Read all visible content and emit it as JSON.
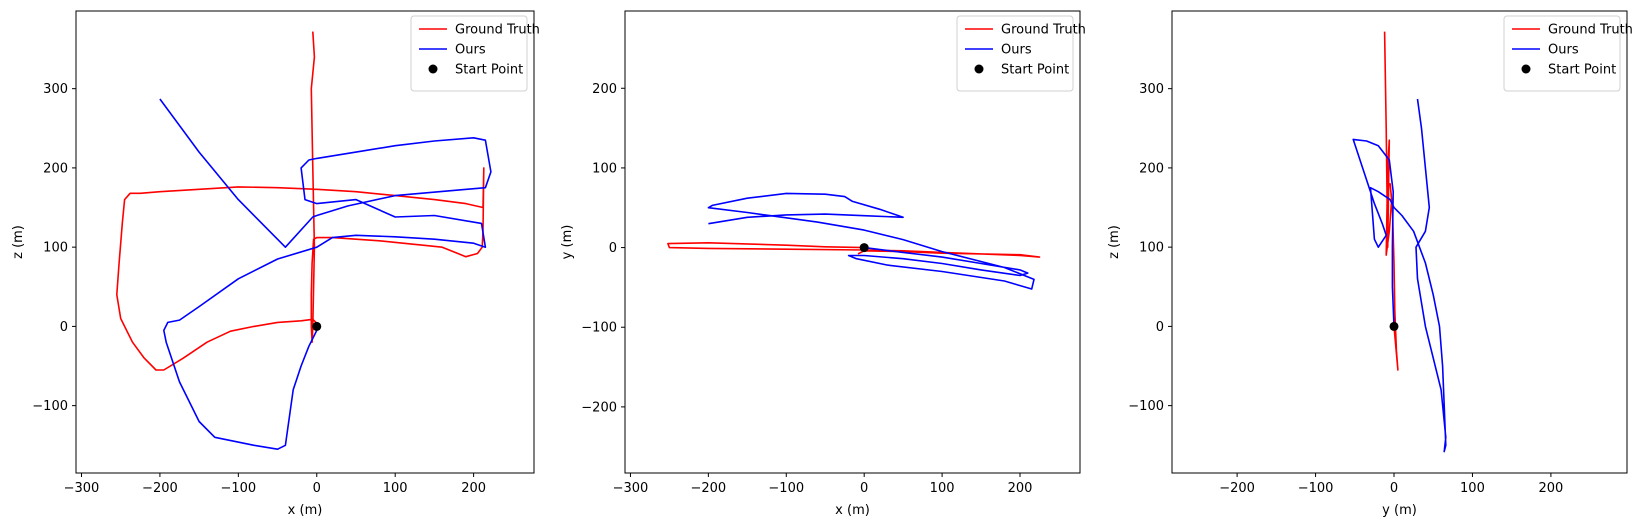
{
  "chart_data": [
    {
      "type": "line",
      "xlabel": "x (m)",
      "ylabel": "z (m)",
      "xlim": [
        -307,
        277
      ],
      "ylim": [
        -185,
        398
      ],
      "xticks": [
        -300,
        -200,
        -100,
        0,
        100,
        200
      ],
      "yticks": [
        -100,
        0,
        100,
        200,
        300
      ],
      "legend": {
        "placement": "top-right",
        "entries": [
          "Ground Truth",
          "Ours",
          "Start Point"
        ]
      },
      "series": [
        {
          "name": "Ground Truth",
          "color": "#ff0000",
          "points": [
            [
              0,
              0
            ],
            [
              -1,
              5
            ],
            [
              -5,
              9
            ],
            [
              -20,
              7
            ],
            [
              -50,
              5
            ],
            [
              -80,
              0
            ],
            [
              -110,
              -6
            ],
            [
              -140,
              -20
            ],
            [
              -170,
              -40
            ],
            [
              -195,
              -55
            ],
            [
              -205,
              -55
            ],
            [
              -220,
              -40
            ],
            [
              -235,
              -20
            ],
            [
              -250,
              10
            ],
            [
              -255,
              40
            ],
            [
              -252,
              80
            ],
            [
              -248,
              130
            ],
            [
              -245,
              160
            ],
            [
              -238,
              168
            ],
            [
              -225,
              168
            ],
            [
              -200,
              170
            ],
            [
              -150,
              173
            ],
            [
              -100,
              176
            ],
            [
              -50,
              175
            ],
            [
              0,
              173
            ],
            [
              50,
              170
            ],
            [
              100,
              165
            ],
            [
              150,
              160
            ],
            [
              190,
              155
            ],
            [
              212,
              150
            ],
            [
              213,
              200
            ],
            [
              212,
              120
            ],
            [
              211,
              100
            ],
            [
              205,
              92
            ],
            [
              190,
              88
            ],
            [
              180,
              92
            ],
            [
              160,
              100
            ],
            [
              140,
              102
            ],
            [
              110,
              105
            ],
            [
              80,
              108
            ],
            [
              50,
              110
            ],
            [
              20,
              112
            ],
            [
              0,
              112
            ],
            [
              -4,
              110
            ],
            [
              -6,
              80
            ],
            [
              -7,
              40
            ],
            [
              -7,
              0
            ],
            [
              -6,
              -20
            ],
            [
              -5,
              0
            ],
            [
              -4,
              50
            ],
            [
              -3,
              100
            ],
            [
              -5,
              200
            ],
            [
              -7,
              300
            ],
            [
              -3,
              340
            ],
            [
              -5,
              372
            ]
          ]
        },
        {
          "name": "Ours",
          "color": "#0000ff",
          "points": [
            [
              0,
              -5
            ],
            [
              -10,
              -25
            ],
            [
              -20,
              -50
            ],
            [
              -30,
              -80
            ],
            [
              -35,
              -115
            ],
            [
              -40,
              -150
            ],
            [
              -50,
              -155
            ],
            [
              -80,
              -150
            ],
            [
              -130,
              -140
            ],
            [
              -150,
              -120
            ],
            [
              -175,
              -70
            ],
            [
              -192,
              -20
            ],
            [
              -195,
              -5
            ],
            [
              -190,
              5
            ],
            [
              -175,
              8
            ],
            [
              -150,
              25
            ],
            [
              -100,
              60
            ],
            [
              -50,
              85
            ],
            [
              0,
              100
            ],
            [
              20,
              112
            ],
            [
              50,
              115
            ],
            [
              100,
              113
            ],
            [
              150,
              110
            ],
            [
              200,
              105
            ],
            [
              215,
              100
            ],
            [
              210,
              130
            ],
            [
              150,
              140
            ],
            [
              100,
              138
            ],
            [
              50,
              160
            ],
            [
              0,
              155
            ],
            [
              -15,
              160
            ],
            [
              -20,
              200
            ],
            [
              -10,
              210
            ],
            [
              0,
              212
            ],
            [
              50,
              220
            ],
            [
              100,
              228
            ],
            [
              150,
              234
            ],
            [
              200,
              238
            ],
            [
              215,
              235
            ],
            [
              222,
              195
            ],
            [
              215,
              175
            ],
            [
              180,
              172
            ],
            [
              100,
              165
            ],
            [
              40,
              152
            ],
            [
              0,
              140
            ],
            [
              -5,
              138
            ],
            [
              -40,
              100
            ],
            [
              -100,
              160
            ],
            [
              -150,
              220
            ],
            [
              -200,
              287
            ]
          ]
        }
      ],
      "points": [
        {
          "name": "Start Point",
          "x": 0,
          "y": 0,
          "color": "#000000"
        }
      ]
    },
    {
      "type": "line",
      "xlabel": "x (m)",
      "ylabel": "y (m)",
      "xlim": [
        -307,
        277
      ],
      "ylim": [
        -283,
        297
      ],
      "xticks": [
        -300,
        -200,
        -100,
        0,
        100,
        200
      ],
      "yticks": [
        -200,
        -100,
        0,
        100,
        200
      ],
      "legend": {
        "placement": "top-right",
        "entries": [
          "Ground Truth",
          "Ours",
          "Start Point"
        ]
      },
      "series": [
        {
          "name": "Ground Truth",
          "color": "#ff0000",
          "points": [
            [
              -8,
              -8
            ],
            [
              0,
              -4
            ],
            [
              50,
              -5
            ],
            [
              100,
              -7
            ],
            [
              150,
              -8
            ],
            [
              200,
              -9
            ],
            [
              225,
              -12
            ],
            [
              200,
              -10
            ],
            [
              150,
              -8
            ],
            [
              100,
              -6
            ],
            [
              50,
              -4
            ],
            [
              0,
              -3
            ],
            [
              -100,
              -2
            ],
            [
              -200,
              -1
            ],
            [
              -250,
              0
            ],
            [
              -252,
              5
            ],
            [
              -200,
              6
            ],
            [
              -100,
              3
            ],
            [
              -50,
              1
            ],
            [
              0,
              0
            ]
          ]
        },
        {
          "name": "Ours",
          "color": "#0000ff",
          "points": [
            [
              0,
              0
            ],
            [
              50,
              -6
            ],
            [
              100,
              -12
            ],
            [
              150,
              -20
            ],
            [
              200,
              -28
            ],
            [
              210,
              -32
            ],
            [
              200,
              -35
            ],
            [
              150,
              -28
            ],
            [
              100,
              -20
            ],
            [
              50,
              -14
            ],
            [
              0,
              -10
            ],
            [
              -20,
              -10
            ],
            [
              -10,
              -14
            ],
            [
              30,
              -22
            ],
            [
              100,
              -30
            ],
            [
              180,
              -42
            ],
            [
              215,
              -52
            ],
            [
              218,
              -40
            ],
            [
              180,
              -25
            ],
            [
              100,
              -5
            ],
            [
              50,
              10
            ],
            [
              0,
              22
            ],
            [
              -60,
              32
            ],
            [
              -120,
              40
            ],
            [
              -150,
              44
            ],
            [
              -200,
              50
            ],
            [
              -195,
              53
            ],
            [
              -150,
              62
            ],
            [
              -100,
              68
            ],
            [
              -50,
              67
            ],
            [
              -25,
              64
            ],
            [
              -15,
              58
            ],
            [
              20,
              48
            ],
            [
              50,
              38
            ],
            [
              0,
              40
            ],
            [
              -50,
              42
            ],
            [
              -100,
              41
            ],
            [
              -150,
              38
            ],
            [
              -200,
              30
            ]
          ]
        }
      ],
      "points": [
        {
          "name": "Start Point",
          "x": 0,
          "y": 0,
          "color": "#000000"
        }
      ]
    },
    {
      "type": "line",
      "xlabel": "y (m)",
      "ylabel": "z (m)",
      "xlim": [
        -283,
        297
      ],
      "ylim": [
        -185,
        398
      ],
      "xticks": [
        -200,
        -100,
        0,
        100,
        200
      ],
      "yticks": [
        -100,
        0,
        100,
        200,
        300
      ],
      "legend": {
        "placement": "top-right",
        "entries": [
          "Ground Truth",
          "Ours",
          "Start Point"
        ]
      },
      "series": [
        {
          "name": "Ground Truth",
          "color": "#ff0000",
          "points": [
            [
              0,
              0
            ],
            [
              5,
              -55
            ],
            [
              3,
              -30
            ],
            [
              1,
              20
            ],
            [
              0,
              80
            ],
            [
              -2,
              150
            ],
            [
              -5,
              180
            ],
            [
              -3,
              160
            ],
            [
              -6,
              120
            ],
            [
              -10,
              90
            ],
            [
              -8,
              200
            ],
            [
              -6,
              235
            ],
            [
              -8,
              100
            ],
            [
              -10,
              250
            ],
            [
              -12,
              372
            ]
          ]
        },
        {
          "name": "Ours",
          "color": "#0000ff",
          "points": [
            [
              0,
              0
            ],
            [
              -2,
              50
            ],
            [
              -2,
              100
            ],
            [
              -1,
              170
            ],
            [
              -6,
              210
            ],
            [
              -20,
              228
            ],
            [
              -35,
              234
            ],
            [
              -52,
              236
            ],
            [
              -40,
              200
            ],
            [
              -25,
              155
            ],
            [
              -15,
              130
            ],
            [
              -10,
              115
            ],
            [
              -20,
              100
            ],
            [
              -25,
              110
            ],
            [
              -30,
              175
            ],
            [
              -20,
              170
            ],
            [
              -5,
              160
            ],
            [
              0,
              150
            ],
            [
              10,
              140
            ],
            [
              25,
              120
            ],
            [
              40,
              80
            ],
            [
              50,
              40
            ],
            [
              58,
              0
            ],
            [
              62,
              -50
            ],
            [
              64,
              -100
            ],
            [
              66,
              -150
            ],
            [
              64,
              -158
            ],
            [
              66,
              -140
            ],
            [
              60,
              -80
            ],
            [
              40,
              0
            ],
            [
              30,
              60
            ],
            [
              28,
              100
            ],
            [
              40,
              120
            ],
            [
              45,
              150
            ],
            [
              40,
              200
            ],
            [
              35,
              250
            ],
            [
              30,
              287
            ]
          ]
        }
      ],
      "points": [
        {
          "name": "Start Point",
          "x": 0,
          "y": 0,
          "color": "#000000"
        }
      ]
    }
  ]
}
